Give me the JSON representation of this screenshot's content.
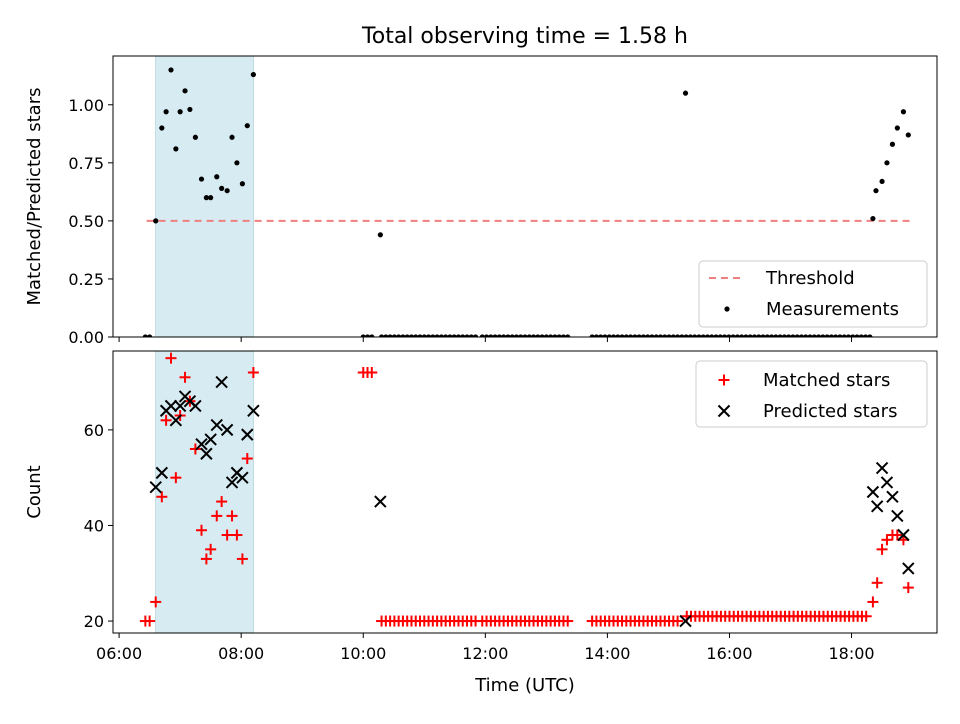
{
  "chart_data": [
    {
      "type": "scatter",
      "title": "Total observing time = 1.58 h",
      "xlabel": "",
      "ylabel": "Matched/Predicted stars",
      "x_unit": "hours UTC",
      "xlim": [
        5.9,
        19.4
      ],
      "ylim": [
        0.0,
        1.21
      ],
      "x_tick_labels": [
        "06:00",
        "08:00",
        "10:00",
        "12:00",
        "14:00",
        "16:00",
        "18:00"
      ],
      "y_ticks": [
        0.0,
        0.25,
        0.5,
        0.75,
        1.0
      ],
      "y_tick_labels": [
        "0.00",
        "0.25",
        "0.50",
        "0.75",
        "1.00"
      ],
      "shaded_span": {
        "x_start": 6.6,
        "x_end": 8.2,
        "color": "#add8e6"
      },
      "legend": {
        "location": "lower right"
      },
      "series": [
        {
          "name": "Threshold",
          "style": "dashed-line",
          "color": "#f08080",
          "x": [
            6.45,
            18.95
          ],
          "y": [
            0.5,
            0.5
          ]
        },
        {
          "name": "Measurements",
          "style": "dot",
          "color": "#000000",
          "x": [
            6.43,
            6.5,
            6.6,
            6.7,
            6.77,
            6.85,
            6.93,
            7.0,
            7.08,
            7.16,
            7.25,
            7.35,
            7.43,
            7.5,
            7.6,
            7.68,
            7.77,
            7.85,
            7.93,
            8.02,
            8.1,
            8.2,
            10.28,
            15.28,
            18.35,
            18.4,
            18.5,
            18.58,
            18.67,
            18.75,
            18.85,
            18.93
          ],
          "y": [
            0.0,
            0.0,
            0.5,
            0.9,
            0.97,
            1.15,
            0.81,
            0.97,
            1.06,
            0.98,
            0.86,
            0.68,
            0.6,
            0.6,
            0.69,
            0.64,
            0.63,
            0.86,
            0.75,
            0.66,
            0.91,
            1.13,
            0.44,
            1.05,
            0.51,
            0.63,
            0.67,
            0.75,
            0.83,
            0.9,
            0.97,
            0.87
          ]
        },
        {
          "name": "",
          "style": "dot",
          "color": "#000000",
          "x_ranges": [
            [
              10.0,
              10.15
            ],
            [
              10.3,
              11.9
            ],
            [
              11.95,
              13.35
            ],
            [
              13.75,
              18.3
            ]
          ],
          "y": 0.0
        }
      ]
    },
    {
      "type": "scatter",
      "title": "",
      "xlabel": "Time (UTC)",
      "ylabel": "Count",
      "x_unit": "hours UTC",
      "xlim": [
        5.9,
        19.4
      ],
      "ylim": [
        17.5,
        76.5
      ],
      "x_tick_labels": [
        "06:00",
        "08:00",
        "10:00",
        "12:00",
        "14:00",
        "16:00",
        "18:00"
      ],
      "y_ticks": [
        20,
        40,
        60
      ],
      "y_tick_labels": [
        "20",
        "40",
        "60"
      ],
      "shaded_span": {
        "x_start": 6.6,
        "x_end": 8.2,
        "color": "#add8e6"
      },
      "legend": {
        "location": "upper right"
      },
      "series": [
        {
          "name": "Matched stars",
          "marker": "+",
          "color": "#ff0000",
          "x": [
            6.43,
            6.5,
            6.6,
            6.7,
            6.77,
            6.85,
            6.93,
            7.0,
            7.08,
            7.16,
            7.25,
            7.35,
            7.43,
            7.5,
            7.6,
            7.68,
            7.77,
            7.85,
            7.93,
            8.02,
            8.1,
            8.2,
            10.0,
            10.07,
            10.14,
            18.35,
            18.42,
            18.5,
            18.58,
            18.67,
            18.75,
            18.85,
            18.93
          ],
          "y": [
            20,
            20,
            24,
            46,
            62,
            75,
            50,
            63,
            71,
            66,
            56,
            39,
            33,
            35,
            42,
            45,
            38,
            42,
            38,
            33,
            54,
            72,
            72,
            72,
            72,
            24,
            28,
            35,
            37,
            38,
            38,
            37,
            27
          ],
          "x_ranges": [
            [
              10.3,
              11.9
            ],
            [
              11.95,
              13.35
            ],
            [
              13.75,
              15.2
            ],
            [
              15.3,
              18.3
            ]
          ],
          "y_ranges": [
            20,
            20,
            20,
            21
          ]
        },
        {
          "name": "Predicted stars",
          "marker": "x",
          "color": "#000000",
          "x": [
            6.6,
            6.7,
            6.77,
            6.85,
            6.93,
            7.0,
            7.08,
            7.16,
            7.25,
            7.35,
            7.43,
            7.5,
            7.6,
            7.68,
            7.77,
            7.85,
            7.93,
            8.02,
            8.1,
            8.2,
            10.28,
            15.28,
            18.35,
            18.42,
            18.5,
            18.58,
            18.67,
            18.75,
            18.85,
            18.93
          ],
          "y": [
            48,
            51,
            64,
            65,
            62,
            65,
            67,
            66,
            65,
            57,
            55,
            58,
            61,
            70,
            60,
            49,
            51,
            50,
            59,
            64,
            45,
            20,
            47,
            44,
            52,
            49,
            46,
            42,
            38,
            31
          ]
        }
      ]
    }
  ]
}
